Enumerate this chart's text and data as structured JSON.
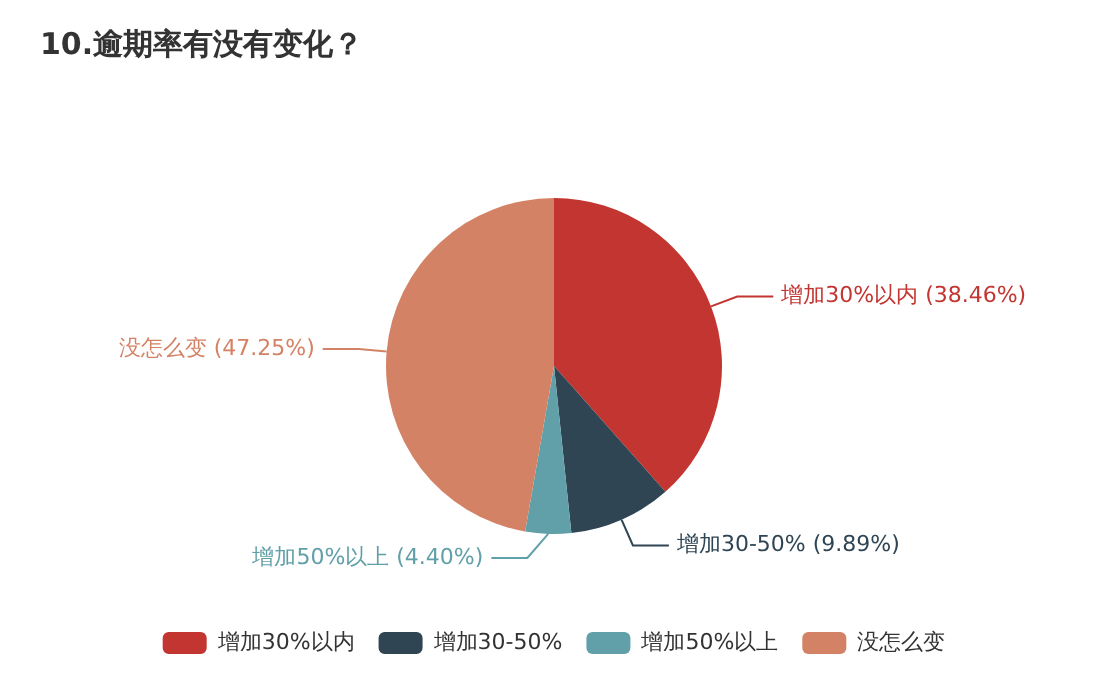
{
  "chart_data": {
    "type": "pie",
    "title": "10.逾期率有没有变化？",
    "categories": [
      "增加30%以内",
      "增加30-50%",
      "增加50%以上",
      "没怎么变"
    ],
    "values": [
      38.46,
      9.89,
      4.4,
      47.25
    ],
    "value_labels": [
      "(38.46%)",
      "(9.89%)",
      "(4.40%)",
      "(47.25%)"
    ],
    "colors": [
      "#c23531",
      "#2f4554",
      "#61a0a8",
      "#d48265"
    ],
    "legend": "bottom"
  }
}
